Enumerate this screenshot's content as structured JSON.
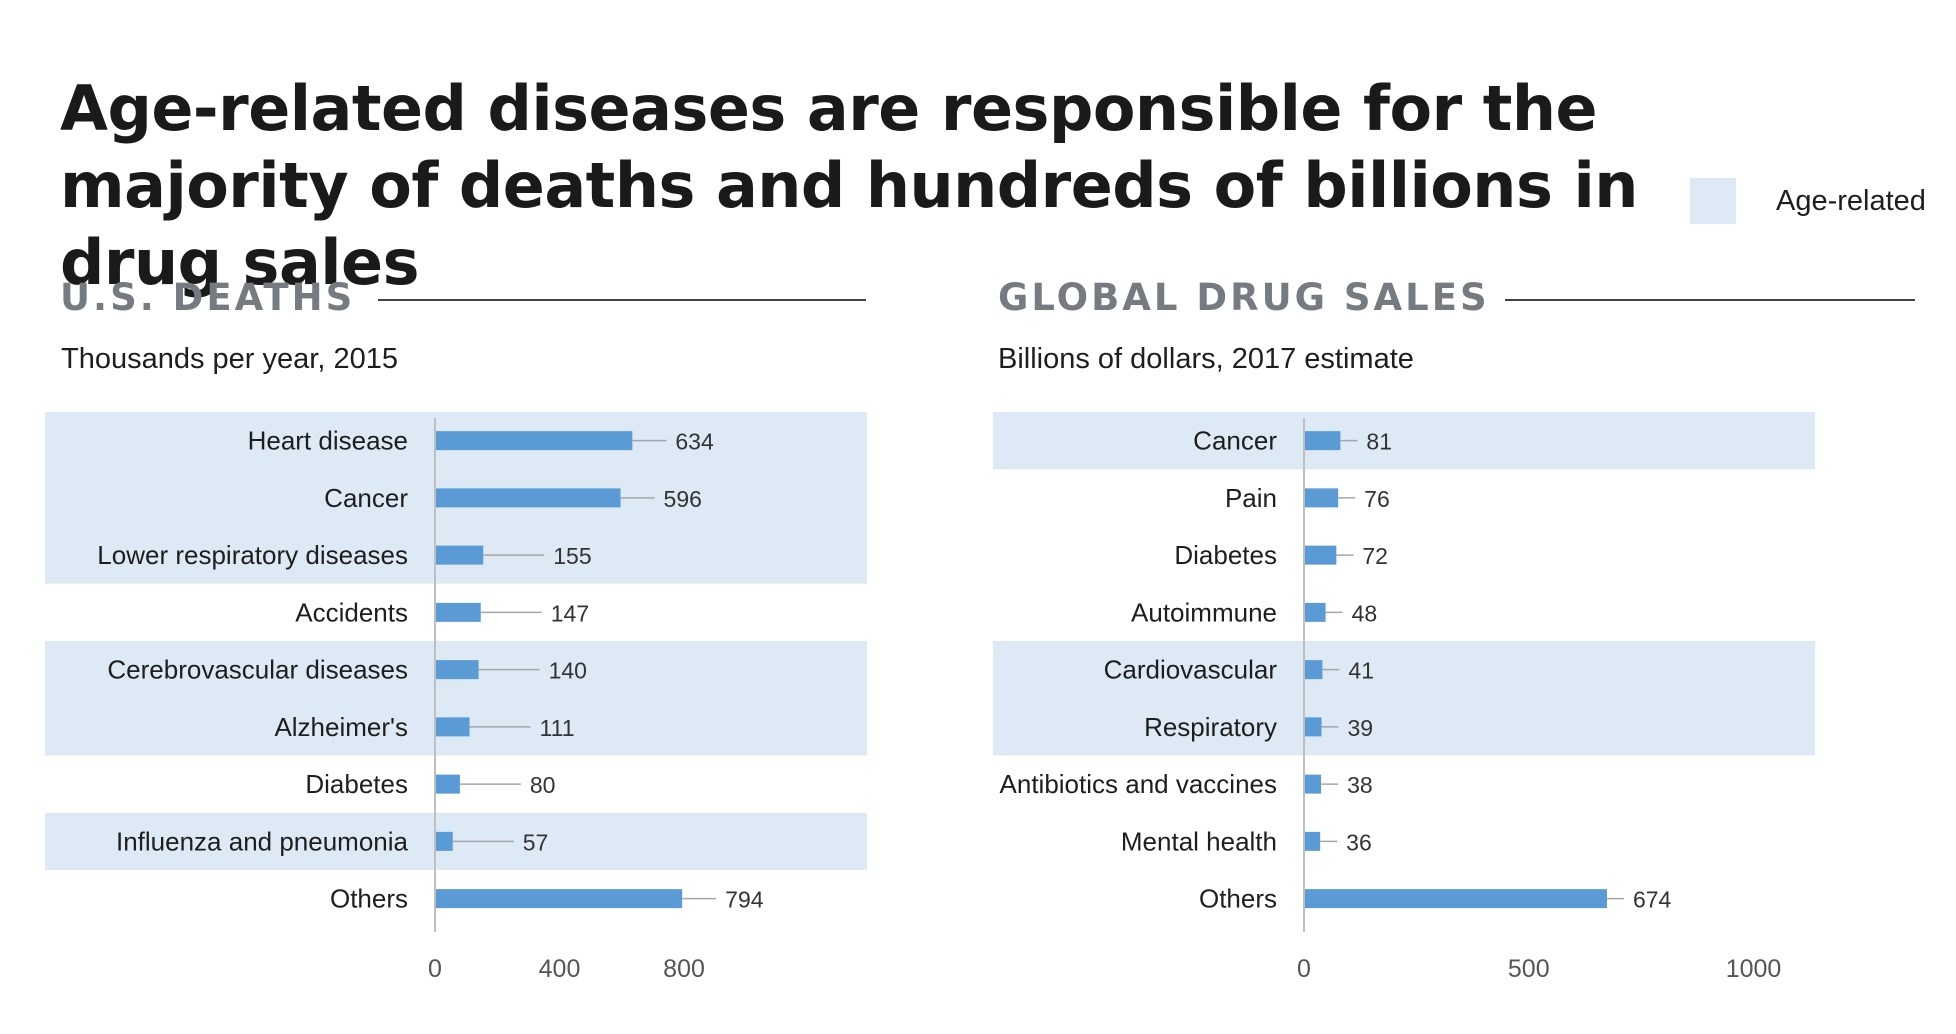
{
  "title": "Age-related diseases are responsible for the majority of deaths and hundreds of billions in drug sales",
  "legend": {
    "label": "Age-related",
    "color": "#dde9f5"
  },
  "colors": {
    "bar": "#5b9bd5",
    "highlight": "#dde9f5",
    "leader": "#a6a6a6",
    "axis": "#bfbfbf"
  },
  "panels": {
    "deaths": {
      "heading": "U.S. DEATHS",
      "subtitle": "Thousands per year, 2015"
    },
    "sales": {
      "heading": "GLOBAL DRUG SALES",
      "subtitle": "Billions of dollars, 2017 estimate"
    }
  },
  "chart_data": [
    {
      "type": "bar",
      "orientation": "horizontal",
      "title": "U.S. DEATHS",
      "subtitle": "Thousands per year, 2015",
      "categories": [
        "Heart disease",
        "Cancer",
        "Lower respiratory diseases",
        "Accidents",
        "Cerebrovascular diseases",
        "Alzheimer's",
        "Diabetes",
        "Influenza and pneumonia",
        "Others"
      ],
      "values": [
        634,
        596,
        155,
        147,
        140,
        111,
        80,
        57,
        794
      ],
      "age_related": [
        true,
        true,
        true,
        false,
        true,
        true,
        false,
        true,
        false
      ],
      "xlim": [
        0,
        1000
      ],
      "xticks": [
        0,
        400,
        800
      ]
    },
    {
      "type": "bar",
      "orientation": "horizontal",
      "title": "GLOBAL DRUG SALES",
      "subtitle": "Billions of dollars, 2017 estimate",
      "categories": [
        "Cancer",
        "Pain",
        "Diabetes",
        "Autoimmune",
        "Cardiovascular",
        "Respiratory",
        "Antibiotics and vaccines",
        "Mental health",
        "Others"
      ],
      "values": [
        81,
        76,
        72,
        48,
        41,
        39,
        38,
        36,
        674
      ],
      "age_related": [
        true,
        false,
        false,
        false,
        true,
        true,
        false,
        false,
        false
      ],
      "xlim": [
        0,
        1100
      ],
      "xticks": [
        0,
        500,
        1000
      ]
    }
  ]
}
